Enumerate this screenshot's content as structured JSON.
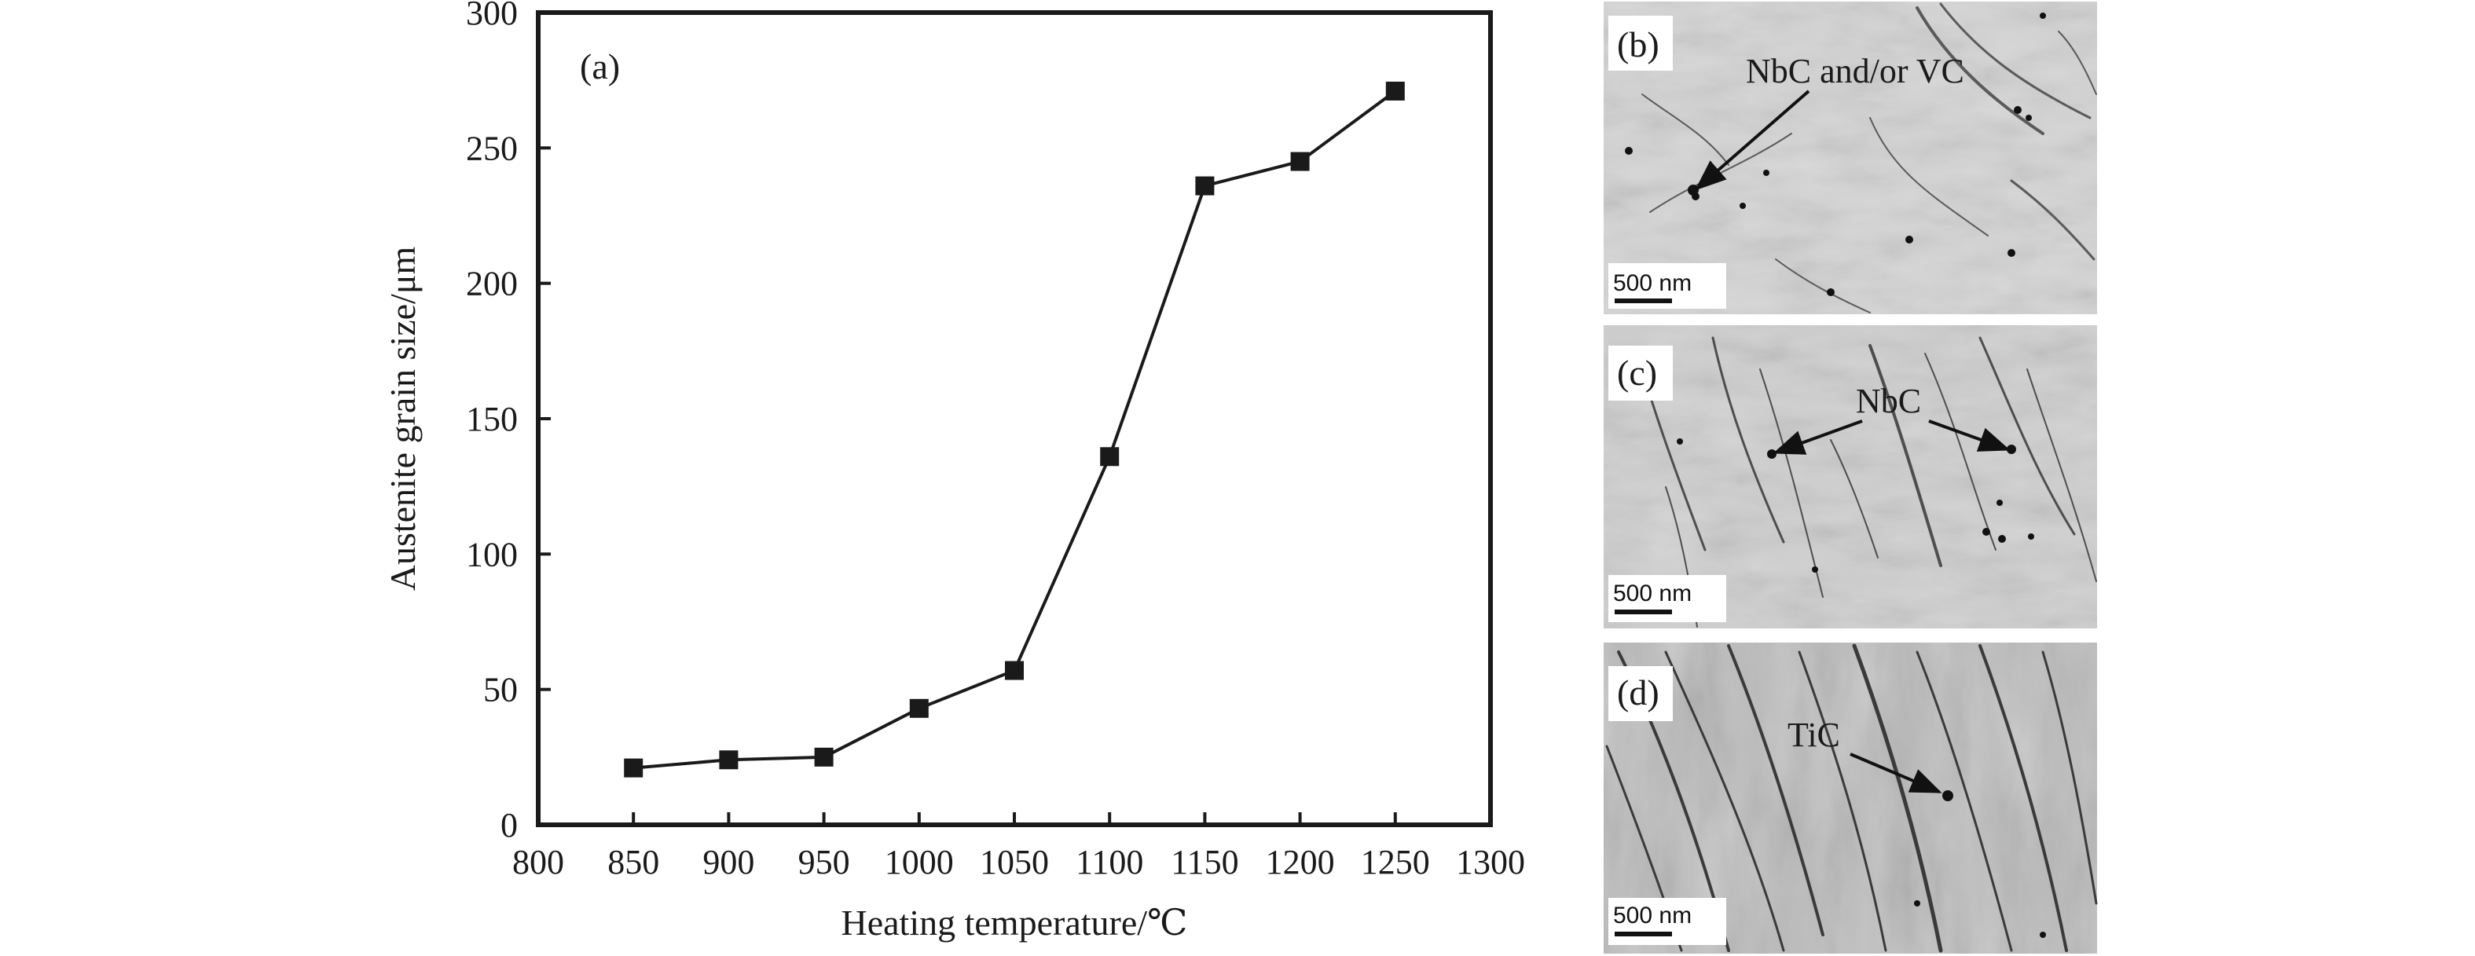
{
  "chart_data": {
    "type": "line",
    "panel_label": "(a)",
    "xlabel": "Heating temperature/℃",
    "ylabel": "Austenite grain size/μm",
    "xlim": [
      800,
      1300
    ],
    "ylim": [
      0,
      300
    ],
    "x_ticks": [
      800,
      850,
      900,
      950,
      1000,
      1050,
      1100,
      1150,
      1200,
      1250,
      1300
    ],
    "y_ticks": [
      0,
      50,
      100,
      150,
      200,
      250,
      300
    ],
    "x": [
      850,
      900,
      950,
      1000,
      1050,
      1100,
      1150,
      1200,
      1250
    ],
    "y": [
      21,
      24,
      25,
      43,
      57,
      136,
      236,
      245,
      271
    ],
    "marker": "square",
    "line_color": "#1a1a1a",
    "grid": false
  },
  "micrographs": [
    {
      "label": "(b)",
      "annotation": "NbC and/or VC",
      "scale_bar": "500 nm",
      "background": "#d4d4d4"
    },
    {
      "label": "(c)",
      "annotation": "NbC",
      "scale_bar": "500 nm",
      "background": "#cfcfcf"
    },
    {
      "label": "(d)",
      "annotation": "TiC",
      "scale_bar": "500 nm",
      "background": "#bdbdbd"
    }
  ]
}
